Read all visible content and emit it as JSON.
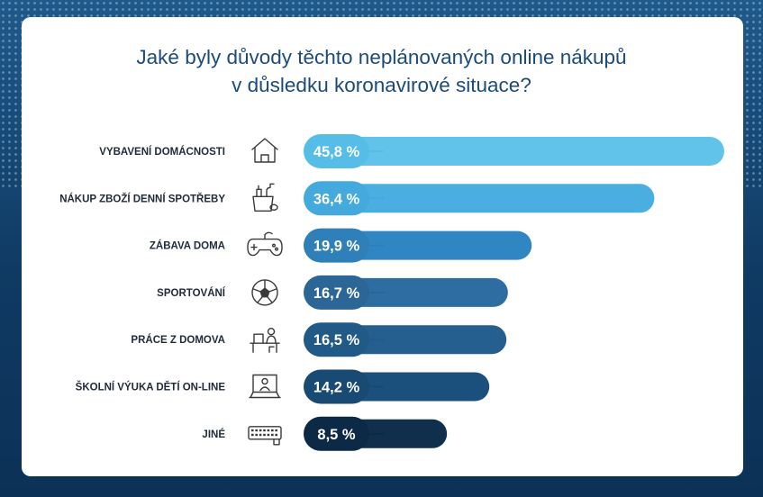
{
  "title": {
    "line1": "Jaké byly důvody těchto neplánovaných online nákupů",
    "line2": "v důsledku koronavirové situace?"
  },
  "chart_data": {
    "type": "bar",
    "orientation": "horizontal",
    "title": "Jaké byly důvody těchto neplánovaných online nákupů v důsledku koronavirové situace?",
    "categories": [
      "VYBAVENÍ DOMÁCNOSTI",
      "NÁKUP ZBOŽÍ DENNÍ SPOTŘEBY",
      "ZÁBAVA DOMA",
      "SPORTOVÁNÍ",
      "PRÁCE Z DOMOVA",
      "ŠKOLNÍ VÝUKA DĚTÍ ON-LINE",
      "JINÉ"
    ],
    "values": [
      45.8,
      36.4,
      19.9,
      16.7,
      16.5,
      14.2,
      8.5
    ],
    "value_labels": [
      "45,8 %",
      "36,4 %",
      "19,9 %",
      "16,7 %",
      "16,5 %",
      "14,2 %",
      "8,5 %"
    ],
    "icons": [
      "house-icon",
      "cleaning-supplies-icon",
      "gamepad-icon",
      "soccer-ball-icon",
      "desk-worker-icon",
      "video-lesson-icon",
      "keyboard-icon"
    ],
    "bar_colors": [
      "#62c3ea",
      "#4aafe0",
      "#2f86c3",
      "#2e6da1",
      "#245f8f",
      "#1b4f7c",
      "#0f2f4d"
    ],
    "badge_colors": [
      "#55bde6",
      "#44a9dc",
      "#2f7fb9",
      "#2c6696",
      "#225a87",
      "#184a73",
      "#0c2a45"
    ],
    "grid": false
  }
}
